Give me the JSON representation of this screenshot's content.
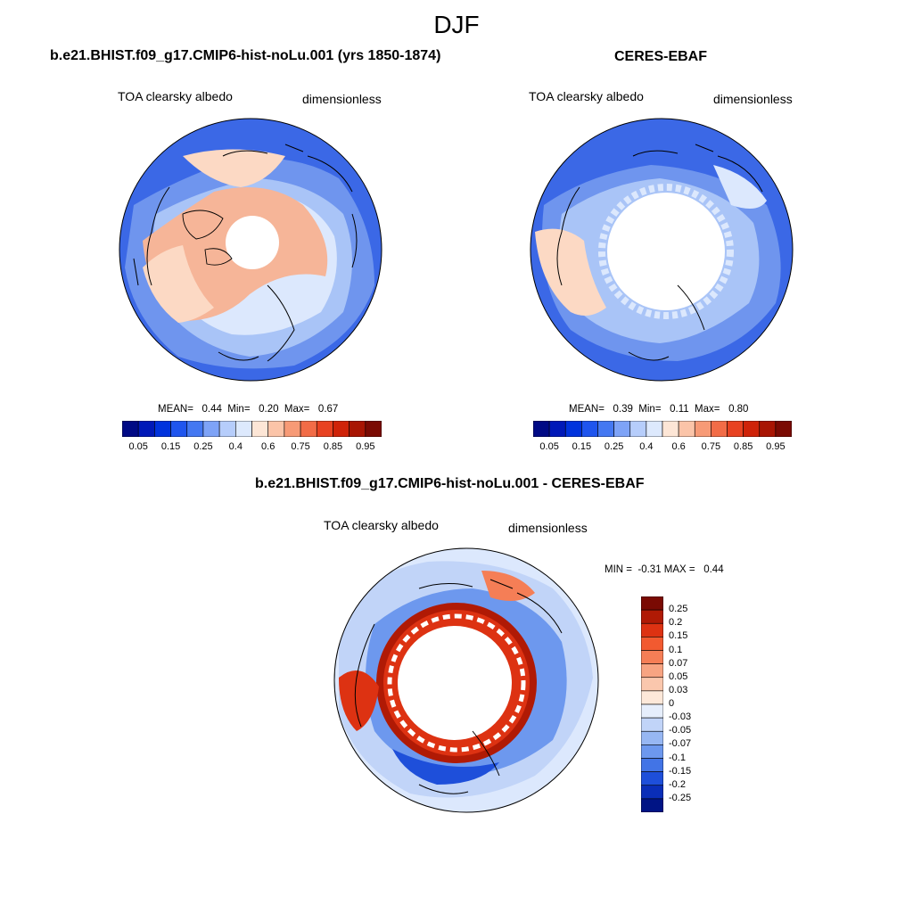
{
  "figure_title": "DJF",
  "panels": [
    {
      "title": "b.e21.BHIST.f09_g17.CMIP6-hist-noLu.001 (yrs 1850-1874)",
      "variable": "TOA clearsky albedo",
      "units": "dimensionless",
      "stats": "MEAN=   0.44  Min=   0.20  Max=   0.67"
    },
    {
      "title": "CERES-EBAF",
      "variable": "TOA clearsky albedo",
      "units": "dimensionless",
      "stats": "MEAN=   0.39  Min=   0.11  Max=   0.80"
    },
    {
      "title": "b.e21.BHIST.f09_g17.CMIP6-hist-noLu.001 - CERES-EBAF",
      "variable": "TOA clearsky albedo",
      "units": "dimensionless",
      "stats": "MIN =  -0.31 MAX =   0.44"
    }
  ],
  "colorbar_horizontal": {
    "tick_labels": [
      "0.05",
      "0.15",
      "0.25",
      "0.4",
      "0.6",
      "0.75",
      "0.85",
      "0.95"
    ],
    "colors": [
      "#000a85",
      "#0019b8",
      "#0033dd",
      "#1f55ee",
      "#4478f2",
      "#7ea3f7",
      "#b6cdfb",
      "#dde9fd",
      "#fde6d6",
      "#fbc4a8",
      "#f79a76",
      "#f26c47",
      "#e84221",
      "#cf2309",
      "#a81503",
      "#7a0a03"
    ]
  },
  "colorbar_vertical": {
    "labels": [
      "0.25",
      "0.2",
      "0.15",
      "0.1",
      "0.07",
      "0.05",
      "0.03",
      "0",
      "-0.03",
      "-0.05",
      "-0.07",
      "-0.1",
      "-0.15",
      "-0.2",
      "-0.25"
    ],
    "colors": [
      "#7a0a03",
      "#b01a05",
      "#dd3212",
      "#f25a30",
      "#f57e56",
      "#f7a482",
      "#fac7ad",
      "#fde8d9",
      "#e6eefc",
      "#c1d4f8",
      "#97b7f3",
      "#6d98ee",
      "#4274e6",
      "#1e4fda",
      "#0a2eb8",
      "#001485"
    ]
  },
  "map_colors": {
    "deep_blue": "#3b68e6",
    "mid_blue": "#6f95ee",
    "light_blue": "#a9c4f7",
    "pale_blue": "#dce8fd",
    "peach": "#fcd9c4",
    "salmon": "#f6b598",
    "red": "#d42a0c",
    "dark_red": "#9a0f04",
    "white": "#ffffff",
    "coast": "#000000"
  }
}
